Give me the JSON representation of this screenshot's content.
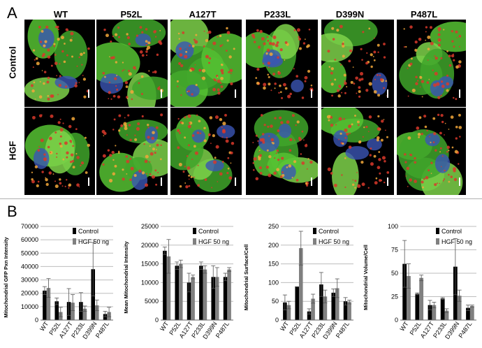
{
  "panel_a": {
    "letter": "A",
    "columns": [
      "WT",
      "P52L",
      "A127T",
      "P233L",
      "D399N",
      "P487L"
    ],
    "rows": [
      "Control",
      "HGF"
    ]
  },
  "panel_b": {
    "letter": "B"
  },
  "colors": {
    "control": "#000000",
    "hgf": "#808080",
    "grid": "#bdbdbd"
  },
  "chart_data": [
    {
      "type": "bar",
      "ylabel": "Mitochondrial GFP Pxn Intensity",
      "categories": [
        "WT",
        "P52L",
        "A127T",
        "P233L",
        "D399N",
        "P487L"
      ],
      "ylim": [
        0,
        70000
      ],
      "yticks": [
        0,
        10000,
        20000,
        30000,
        40000,
        50000,
        60000,
        70000
      ],
      "series": [
        {
          "name": "Control",
          "values": [
            22000,
            14000,
            13500,
            13500,
            38000,
            4500
          ],
          "errors": [
            3000,
            2500,
            10000,
            7000,
            20000,
            2000
          ]
        },
        {
          "name": "HGF 50 ng",
          "values": [
            24000,
            6000,
            13000,
            8500,
            11000,
            6000
          ],
          "errors": [
            7000,
            3500,
            6000,
            2000,
            4000,
            3500
          ]
        }
      ],
      "legend": "top-right"
    },
    {
      "type": "bar",
      "ylabel": "Mean Mitochondrial Intensity",
      "categories": [
        "WT",
        "P52L",
        "A127T",
        "P233L",
        "D399N",
        "P487L"
      ],
      "ylim": [
        0,
        25000
      ],
      "yticks": [
        0,
        5000,
        10000,
        15000,
        20000,
        25000
      ],
      "series": [
        {
          "name": "Control",
          "values": [
            18500,
            14500,
            10000,
            14500,
            11500,
            11500
          ],
          "errors": [
            1000,
            1000,
            2500,
            1000,
            3000,
            1000
          ]
        },
        {
          "name": "HGF 50 ng",
          "values": [
            17000,
            15000,
            11500,
            13500,
            11500,
            13500
          ],
          "errors": [
            4500,
            1000,
            500,
            1000,
            2500,
            500
          ]
        }
      ],
      "legend": "top-right"
    },
    {
      "type": "bar",
      "ylabel": "Mitochondrial Surface/Cell",
      "categories": [
        "WT",
        "P52L",
        "A127T",
        "P233L",
        "D399N",
        "P487L"
      ],
      "ylim": [
        0,
        250
      ],
      "yticks": [
        0,
        50,
        100,
        150,
        200,
        250
      ],
      "series": [
        {
          "name": "Control",
          "values": [
            47,
            89,
            23,
            95,
            73,
            50
          ],
          "errors": [
            20,
            0,
            7,
            32,
            10,
            10
          ]
        },
        {
          "name": "HGF 50 ng",
          "values": [
            40,
            192,
            57,
            63,
            85,
            48
          ],
          "errors": [
            10,
            45,
            12,
            17,
            25,
            5
          ]
        }
      ],
      "legend": "top-right"
    },
    {
      "type": "bar",
      "ylabel": "Mitochondrial Volume/Cell",
      "categories": [
        "WT",
        "P52L",
        "A127T",
        "P233L",
        "D399N",
        "P487L"
      ],
      "ylim": [
        0,
        100
      ],
      "yticks": [
        0,
        25,
        50,
        75,
        100
      ],
      "series": [
        {
          "name": "Control",
          "values": [
            60,
            28,
            16,
            23,
            57,
            13
          ],
          "errors": [
            25,
            1,
            5,
            1,
            30,
            3
          ]
        },
        {
          "name": "HGF 50 ng",
          "values": [
            47,
            45,
            16,
            10,
            26,
            15
          ],
          "errors": [
            13,
            3,
            3,
            2,
            6,
            1
          ]
        }
      ],
      "legend": "top-right"
    }
  ]
}
